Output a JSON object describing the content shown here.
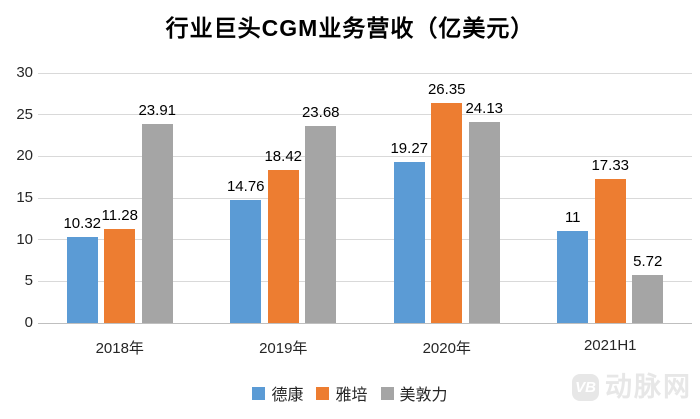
{
  "title": "行业巨头CGM业务营收（亿美元）",
  "chart_data": {
    "type": "bar",
    "title": "行业巨头CGM业务营收（亿美元）",
    "categories": [
      "2018年",
      "2019年",
      "2020年",
      "2021H1"
    ],
    "series": [
      {
        "name": "德康",
        "color": "#5B9BD5",
        "values": [
          10.32,
          14.76,
          19.27,
          11
        ]
      },
      {
        "name": "雅培",
        "color": "#ED7D31",
        "values": [
          11.28,
          18.42,
          26.35,
          17.33
        ]
      },
      {
        "name": "美敦力",
        "color": "#A5A5A5",
        "values": [
          23.91,
          23.68,
          24.13,
          5.72
        ]
      }
    ],
    "ylim": [
      0,
      30
    ],
    "yticks": [
      0,
      5,
      10,
      15,
      20,
      25,
      30
    ],
    "grid": true,
    "data_labels": true,
    "legend_position": "bottom"
  },
  "colors": {
    "gridline": "#D9D9D9",
    "axis_line": "#BFBFBF",
    "tick_text": "#262626",
    "label_text": "#000000",
    "watermark": "#E7E7E7"
  },
  "watermark": {
    "logo": "VB",
    "text": "动脉网"
  }
}
